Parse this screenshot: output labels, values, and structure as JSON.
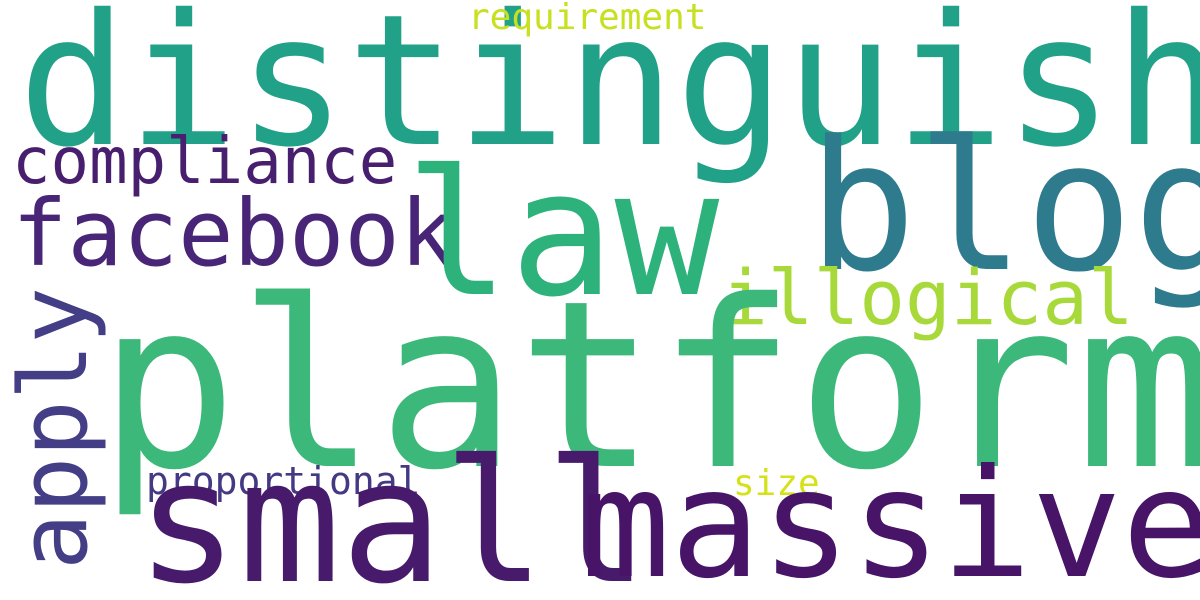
{
  "words": {
    "distinguish": {
      "text": "distinguish",
      "color": "#21a188"
    },
    "platform": {
      "text": "platform",
      "color": "#3bb87a"
    },
    "law": {
      "text": "law",
      "color": "#2eb27c"
    },
    "blog": {
      "text": "blog",
      "color": "#2e7b8e"
    },
    "massive": {
      "text": "massive",
      "color": "#471468"
    },
    "small": {
      "text": "small",
      "color": "#481a6c"
    },
    "facebook": {
      "text": "facebook",
      "color": "#482576"
    },
    "compliance": {
      "text": "compliance",
      "color": "#471f6e"
    },
    "illogical": {
      "text": "illogical",
      "color": "#a8d93a"
    },
    "apply": {
      "text": "apply",
      "color": "#433e85"
    },
    "requirement": {
      "text": "requirement",
      "color": "#c7e020"
    },
    "proportional": {
      "text": "proportional",
      "color": "#443983"
    },
    "size": {
      "text": "size",
      "color": "#d5e21a"
    }
  }
}
